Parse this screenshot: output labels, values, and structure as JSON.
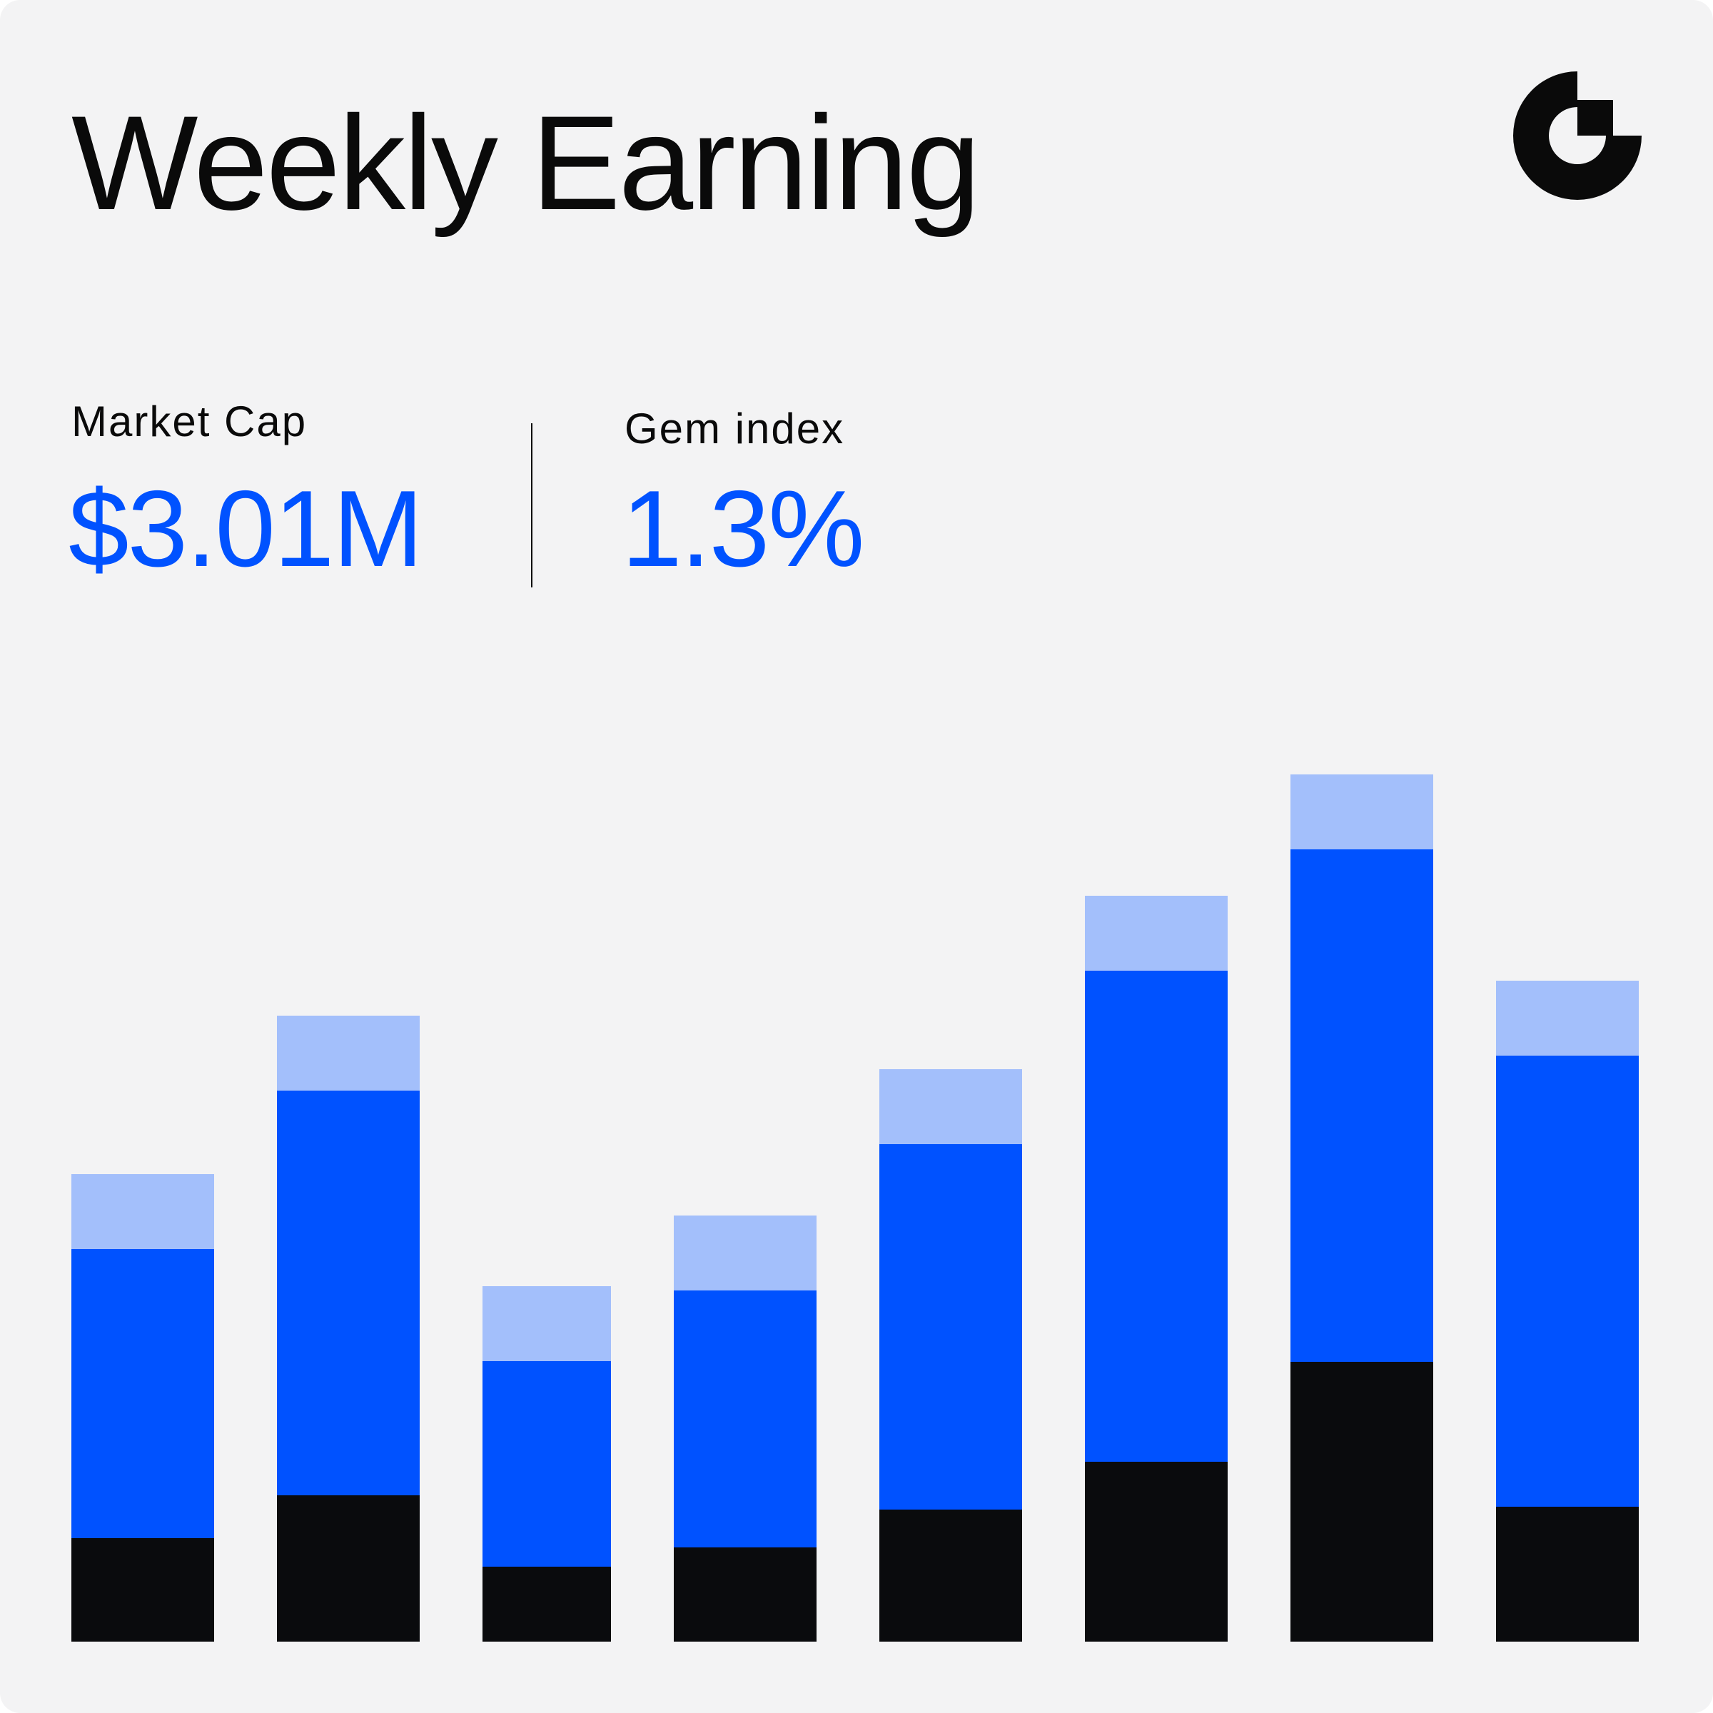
{
  "title": "Weekly Earning",
  "stats": {
    "market_cap": {
      "label": "Market Cap",
      "value": "$3.01M"
    },
    "gem_index": {
      "label": "Gem index",
      "value": "1.3%"
    }
  },
  "colors": {
    "background": "#f3f3f4",
    "base": "#0a0b0d",
    "primary": "#0052ff",
    "light": "#a3bffb",
    "text": "#0a0a0a"
  },
  "logo": {
    "icon": "brand-logo-icon"
  },
  "chart_data": {
    "type": "bar",
    "stacked": true,
    "categories": [
      "",
      "",
      "",
      "",
      "",
      "",
      "",
      ""
    ],
    "series": [
      {
        "values": [
          145,
          205,
          105,
          132,
          185,
          252,
          392,
          189
        ],
        "color": "#0a0b0d"
      },
      {
        "values": [
          405,
          567,
          288,
          360,
          512,
          688,
          718,
          632
        ],
        "color": "#0052ff"
      },
      {
        "values": [
          105,
          105,
          105,
          105,
          105,
          105,
          105,
          105
        ],
        "color": "#a3bffb"
      }
    ],
    "ylim": [
      0,
      1300
    ],
    "grid": false,
    "legend": "none",
    "xlabel": "",
    "ylabel": ""
  }
}
